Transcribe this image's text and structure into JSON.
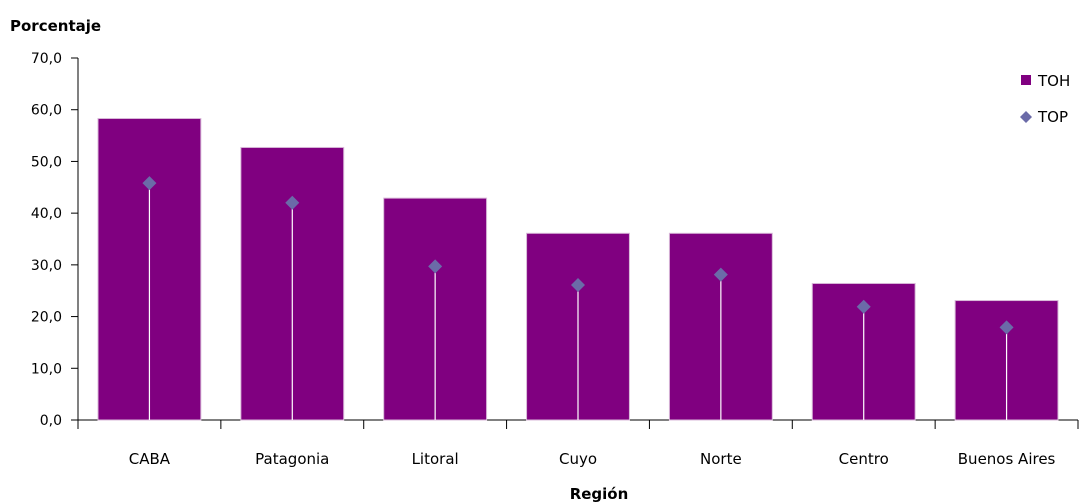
{
  "chart_data": {
    "type": "bar",
    "title": "",
    "ylabel": "Porcentaje",
    "xlabel": "Región",
    "ylim": [
      0,
      70
    ],
    "ytick_values": [
      0,
      10,
      20,
      30,
      40,
      50,
      60,
      70
    ],
    "ytick_labels": [
      "0,0",
      "10,0",
      "20,0",
      "30,0",
      "40,0",
      "50,0",
      "60,0",
      "70,0"
    ],
    "categories": [
      "CABA",
      "Patagonia",
      "Litoral",
      "Cuyo",
      "Norte",
      "Centro",
      "Buenos Aires"
    ],
    "series": [
      {
        "name": "TOH",
        "kind": "bar",
        "values": [
          58.3,
          52.7,
          42.9,
          36.1,
          36.1,
          26.4,
          23.1
        ]
      },
      {
        "name": "TOP",
        "kind": "marker",
        "values": [
          45.8,
          42.0,
          29.7,
          26.1,
          28.1,
          21.9,
          17.9
        ]
      }
    ],
    "grid": false,
    "legend_position": "top-right",
    "colors": {
      "TOH": "#800080",
      "TOP": "#6B6BA8"
    }
  }
}
